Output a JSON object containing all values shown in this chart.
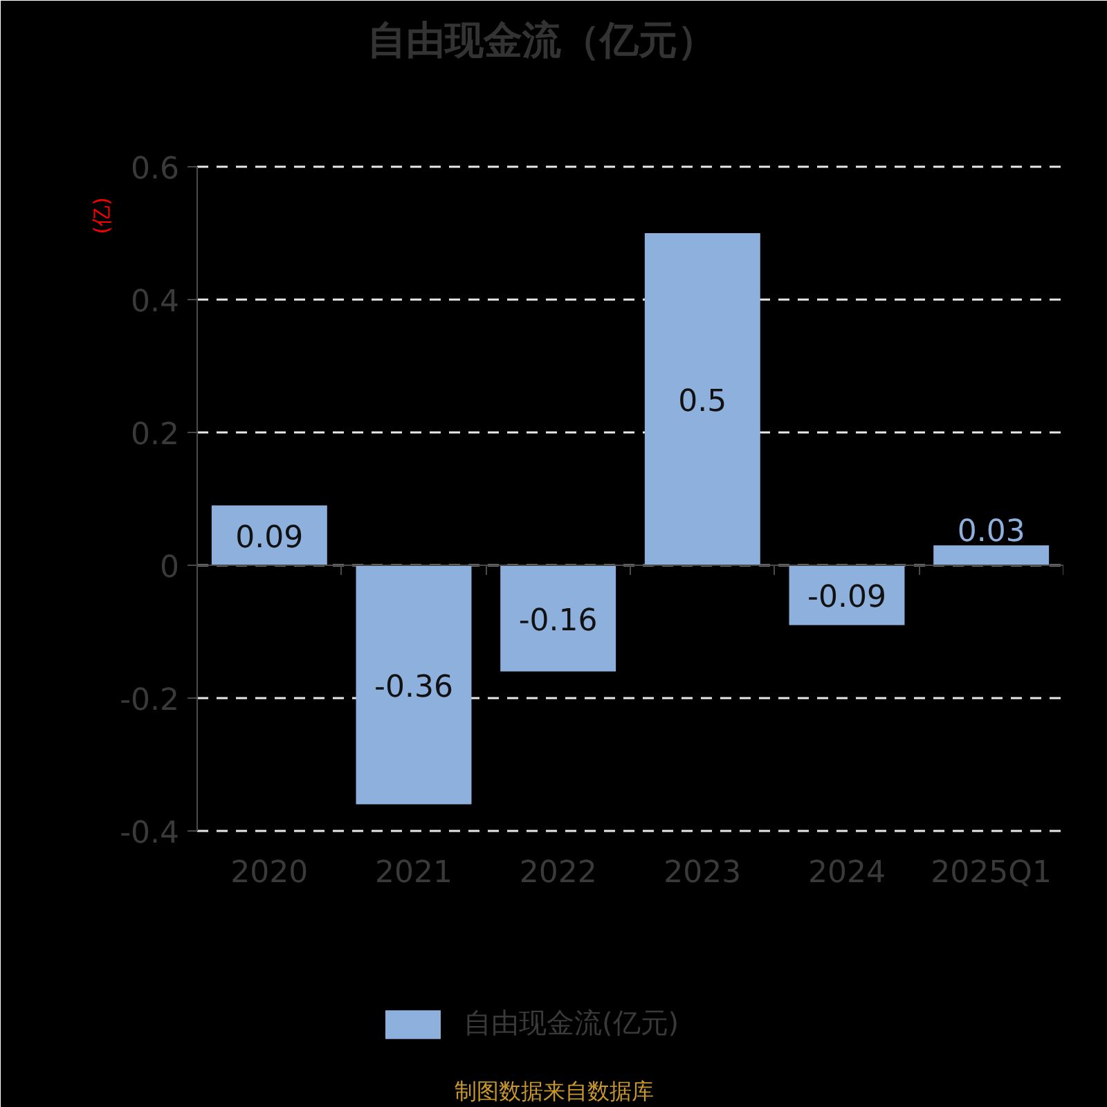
{
  "chart_data": {
    "type": "bar",
    "title": "自由现金流（亿元）",
    "ylabel": "(亿)",
    "categories": [
      "2020",
      "2021",
      "2022",
      "2023",
      "2024",
      "2025Q1"
    ],
    "series": [
      {
        "name": "自由现金流(亿元)",
        "color": "#8eb0dc",
        "values": [
          0.09,
          -0.36,
          -0.16,
          0.5,
          -0.09,
          0.03
        ]
      }
    ],
    "ylim": [
      -0.4,
      0.6
    ],
    "yticks": [
      -0.4,
      -0.2,
      0,
      0.2,
      0.4,
      0.6
    ],
    "grid": "y",
    "legend": "bottom",
    "data_labels": true,
    "annotations": [
      "制图数据来自数据库"
    ]
  }
}
